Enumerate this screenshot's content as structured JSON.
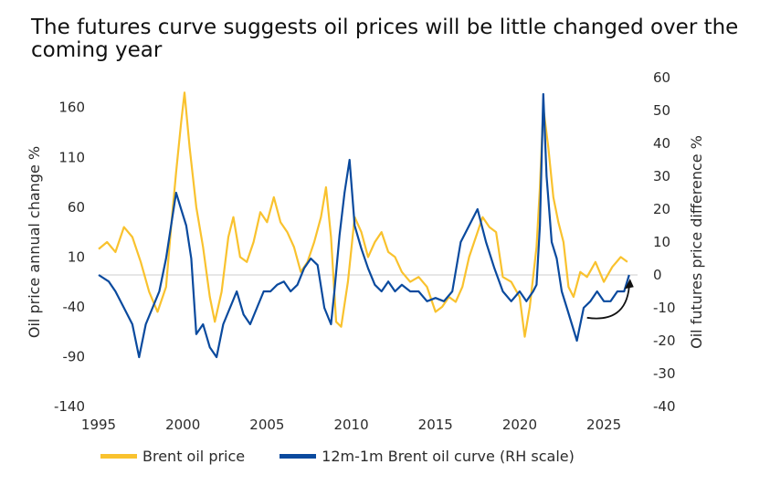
{
  "title": "The futures curve suggests oil prices will be little changed over the coming year",
  "colors": {
    "brent": "#F9C22E",
    "curve": "#0A4A9E",
    "zero": "#cccccc",
    "arrow": "#111111"
  },
  "chart_data": {
    "type": "line",
    "title": "The futures curve suggests oil prices will be little changed over the coming year",
    "xlabel": "",
    "ylabel_left": "Oil price annual change %",
    "ylabel_right": "Oil futures price difference %",
    "xlim": [
      1995,
      2027
    ],
    "x_ticks": [
      "1995",
      "2000",
      "2005",
      "2010",
      "2015",
      "2020",
      "2025"
    ],
    "ylim_left": [
      -140,
      190
    ],
    "ylim_right": [
      -40,
      60
    ],
    "left_ticks": [
      "160",
      "110",
      "60",
      "10",
      "-40",
      "-90",
      "-140"
    ],
    "left_tick_values": [
      160,
      110,
      60,
      10,
      -40,
      -90,
      -140
    ],
    "right_ticks": [
      "60",
      "50",
      "40",
      "30",
      "20",
      "10",
      "0",
      "-10",
      "-20",
      "-30",
      "-40"
    ],
    "right_tick_values": [
      60,
      50,
      40,
      30,
      20,
      10,
      0,
      -10,
      -20,
      -30,
      -40
    ],
    "series": [
      {
        "name": "Brent oil price",
        "axis": "left",
        "x": [
          1995.0,
          1995.5,
          1996.0,
          1996.5,
          1997.0,
          1997.5,
          1998.0,
          1998.5,
          1999.0,
          1999.3,
          1999.6,
          1999.9,
          2000.1,
          2000.4,
          2000.8,
          2001.2,
          2001.6,
          2001.9,
          2002.3,
          2002.7,
          2003.0,
          2003.4,
          2003.8,
          2004.2,
          2004.6,
          2005.0,
          2005.4,
          2005.8,
          2006.2,
          2006.6,
          2007.0,
          2007.4,
          2007.8,
          2008.2,
          2008.5,
          2008.8,
          2009.1,
          2009.4,
          2009.8,
          2010.2,
          2010.6,
          2011.0,
          2011.4,
          2011.8,
          2012.2,
          2012.6,
          2013.0,
          2013.5,
          2014.0,
          2014.5,
          2015.0,
          2015.4,
          2015.8,
          2016.2,
          2016.6,
          2017.0,
          2017.4,
          2017.8,
          2018.2,
          2018.6,
          2019.0,
          2019.5,
          2020.0,
          2020.3,
          2020.6,
          2021.0,
          2021.2,
          2021.4,
          2021.7,
          2022.0,
          2022.3,
          2022.6,
          2022.9,
          2023.2,
          2023.6,
          2024.0,
          2024.5,
          2025.0,
          2025.5,
          2026.0,
          2026.4
        ],
        "values": [
          18,
          25,
          15,
          40,
          30,
          5,
          -25,
          -45,
          -20,
          40,
          95,
          145,
          175,
          120,
          60,
          20,
          -30,
          -55,
          -25,
          30,
          50,
          10,
          5,
          25,
          55,
          45,
          70,
          45,
          35,
          20,
          -5,
          5,
          25,
          50,
          80,
          30,
          -55,
          -60,
          -15,
          50,
          35,
          10,
          25,
          35,
          15,
          10,
          -5,
          -15,
          -10,
          -20,
          -45,
          -40,
          -30,
          -35,
          -20,
          10,
          30,
          50,
          40,
          35,
          -10,
          -15,
          -30,
          -70,
          -40,
          20,
          80,
          160,
          120,
          70,
          45,
          25,
          -20,
          -30,
          -5,
          -10,
          5,
          -15,
          0,
          10,
          5
        ]
      },
      {
        "name": "12m-1m Brent oil curve (RH scale)",
        "axis": "right",
        "x": [
          1995.0,
          1995.6,
          1996.0,
          1996.5,
          1997.0,
          1997.4,
          1997.8,
          1998.2,
          1998.6,
          1999.0,
          1999.3,
          1999.6,
          1999.9,
          2000.2,
          2000.5,
          2000.8,
          2001.2,
          2001.6,
          2002.0,
          2002.4,
          2002.8,
          2003.2,
          2003.6,
          2004.0,
          2004.4,
          2004.8,
          2005.2,
          2005.6,
          2006.0,
          2006.4,
          2006.8,
          2007.2,
          2007.6,
          2008.0,
          2008.4,
          2008.8,
          2009.0,
          2009.3,
          2009.6,
          2009.9,
          2010.2,
          2010.6,
          2011.0,
          2011.4,
          2011.8,
          2012.2,
          2012.6,
          2013.0,
          2013.5,
          2014.0,
          2014.5,
          2015.0,
          2015.5,
          2016.0,
          2016.5,
          2017.0,
          2017.5,
          2018.0,
          2018.5,
          2019.0,
          2019.5,
          2020.0,
          2020.4,
          2020.8,
          2021.0,
          2021.2,
          2021.4,
          2021.6,
          2021.9,
          2022.2,
          2022.5,
          2022.8,
          2023.1,
          2023.4,
          2023.8,
          2024.2,
          2024.6,
          2025.0,
          2025.4,
          2025.8,
          2026.2,
          2026.5
        ],
        "values": [
          0,
          -2,
          -5,
          -10,
          -15,
          -25,
          -15,
          -10,
          -5,
          5,
          15,
          25,
          20,
          15,
          5,
          -18,
          -15,
          -22,
          -25,
          -15,
          -10,
          -5,
          -12,
          -15,
          -10,
          -5,
          -5,
          -3,
          -2,
          -5,
          -3,
          2,
          5,
          3,
          -10,
          -15,
          -5,
          12,
          25,
          35,
          15,
          8,
          2,
          -3,
          -5,
          -2,
          -5,
          -3,
          -5,
          -5,
          -8,
          -7,
          -8,
          -5,
          10,
          15,
          20,
          10,
          2,
          -5,
          -8,
          -5,
          -8,
          -5,
          -3,
          15,
          55,
          30,
          10,
          5,
          -5,
          -10,
          -15,
          -20,
          -10,
          -8,
          -5,
          -8,
          -8,
          -5,
          -5,
          0
        ]
      }
    ],
    "annotations": [
      {
        "type": "arrow",
        "label": "",
        "from": [
          2024.0,
          -13
        ],
        "to": [
          2026.5,
          -2
        ]
      }
    ]
  },
  "legend": {
    "brent": "Brent oil price",
    "curve": "12m-1m Brent oil curve (RH scale)"
  }
}
